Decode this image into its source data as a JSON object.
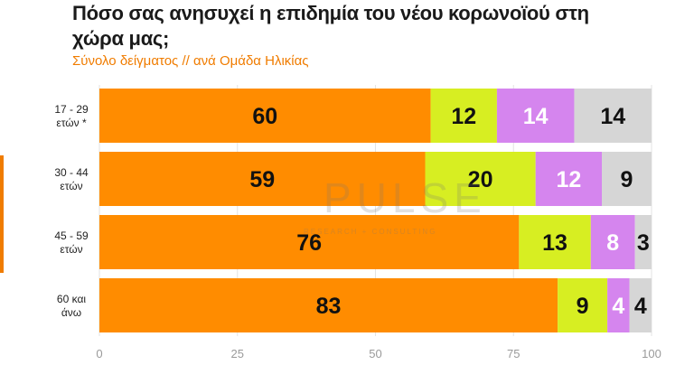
{
  "chart_data": {
    "type": "bar",
    "orientation": "horizontal",
    "stacked": true,
    "title": "Πόσο σας ανησυχεί η επιδημία του νέου κορωνοϊού στη χώρα μας;",
    "subtitle": "Σύνολο δείγματος // ανά Ομάδα Ηλικίας",
    "categories": [
      [
        "17 - 29",
        "ετών *"
      ],
      [
        "30 - 44",
        "ετών"
      ],
      [
        "45 - 59",
        "ετών"
      ],
      [
        "60 και",
        "άνω"
      ]
    ],
    "series": [
      {
        "color": "#ff8c00",
        "values": [
          60,
          59,
          76,
          83
        ]
      },
      {
        "color": "#d7ee22",
        "values": [
          12,
          20,
          13,
          9
        ]
      },
      {
        "color": "#d585ee",
        "values": [
          14,
          12,
          8,
          4
        ]
      },
      {
        "color": "#d6d6d6",
        "values": [
          14,
          9,
          3,
          4
        ]
      }
    ],
    "xlim": [
      0,
      100
    ],
    "xticks": [
      0,
      25,
      50,
      75,
      100
    ],
    "grid": true,
    "legend": "none"
  },
  "watermark": {
    "main": "PULSE",
    "sub": "RESEARCH + CONSULTING"
  }
}
